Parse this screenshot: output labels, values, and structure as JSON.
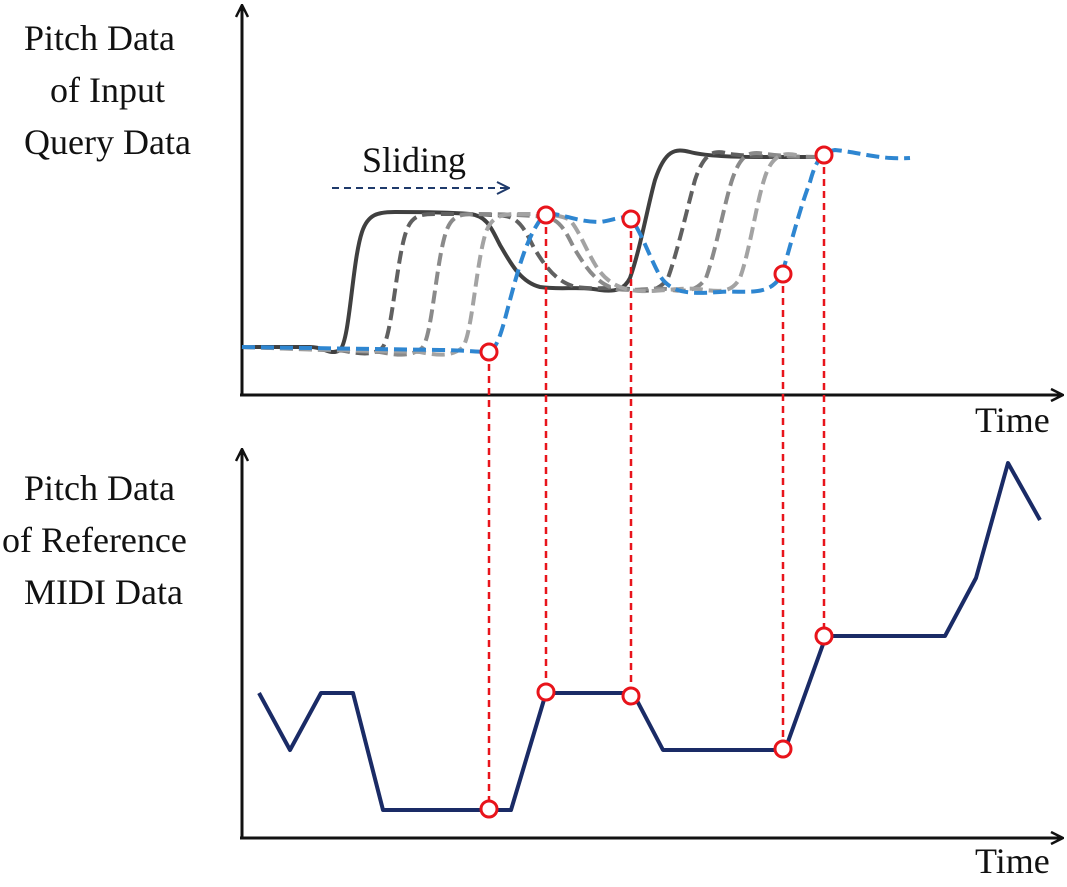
{
  "top_axis": {
    "y_label_lines": [
      "Pitch Data",
      "of Input",
      "Query Data"
    ],
    "x_label": "Time"
  },
  "bottom_axis": {
    "y_label_lines": [
      "Pitch Data",
      "of Reference",
      "MIDI Data"
    ],
    "x_label": "Time"
  },
  "annotation": {
    "sliding_label": "Sliding"
  },
  "colors": {
    "axis": "#111111",
    "query_solid": "#404040",
    "query_shift_1": "#606060",
    "query_shift_2": "#8a8a8a",
    "query_shift_3": "#a3a3a3",
    "query_matched": "#2e86d1",
    "reference": "#1a2b66",
    "match_marker": "#e8141b",
    "sliding_arrow": "#1f3a6b"
  }
}
